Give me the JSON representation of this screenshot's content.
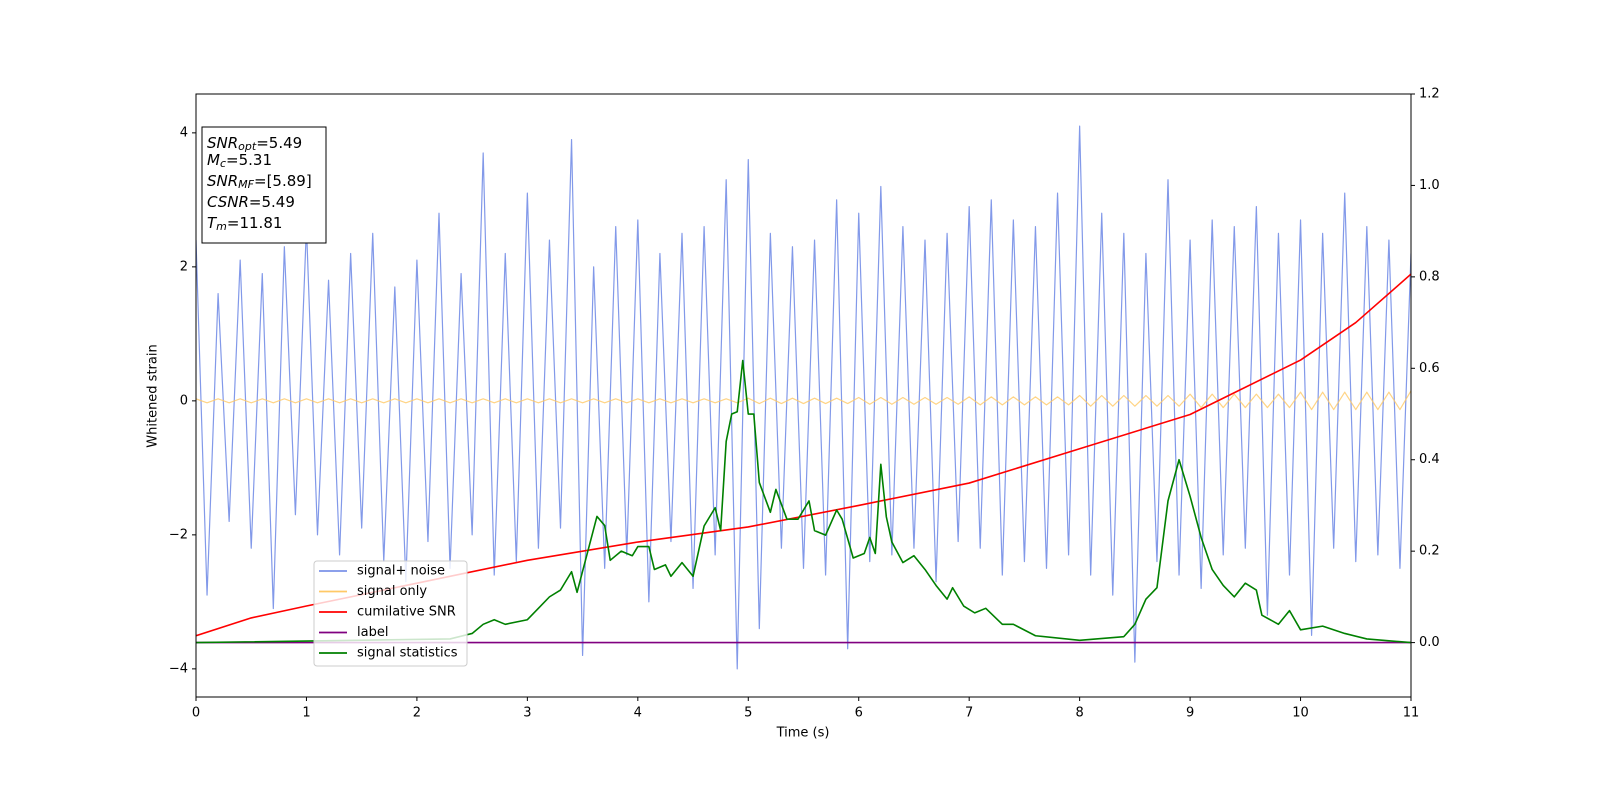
{
  "chart_data": {
    "type": "line",
    "xlabel": "Time (s)",
    "ylabel": "Whitened strain",
    "xlim": [
      0,
      11
    ],
    "xticks": [
      0,
      1,
      2,
      3,
      4,
      5,
      6,
      7,
      8,
      9,
      10,
      11
    ],
    "ylim": [
      -4.42,
      4.58
    ],
    "yticks": [
      {
        "value": -4,
        "label": "−4"
      },
      {
        "value": -2,
        "label": "−2"
      },
      0,
      2,
      4
    ],
    "y2lim": [
      -0.119,
      1.2
    ],
    "y2ticks": [
      {
        "value": 0,
        "label": "0.0"
      },
      {
        "value": 0.2,
        "label": "0.2"
      },
      {
        "value": 0.4,
        "label": "0.4"
      },
      {
        "value": 0.6,
        "label": "0.6"
      },
      {
        "value": 0.8,
        "label": "0.8"
      },
      {
        "value": 1.0,
        "label": "1.0"
      },
      {
        "value": 1.2,
        "label": "1.2"
      }
    ],
    "annotations": [
      {
        "main": "SNR",
        "sub": "opt",
        "rest": "=5.49"
      },
      {
        "main": "M",
        "sub": "c",
        "rest": "=5.31"
      },
      {
        "main": "SNR",
        "sub": "MF",
        "rest": "=[5.89]"
      },
      {
        "main": "CSNR",
        "rest": "=5.49"
      },
      {
        "main": "T",
        "sub": "m",
        "rest": "=11.81"
      }
    ],
    "series": [
      {
        "name": "signal+ noise",
        "color": "#7b93e8",
        "axis": "y",
        "x": [
          0,
          0.1,
          0.2,
          0.3,
          0.4,
          0.5,
          0.6,
          0.7,
          0.8,
          0.9,
          1,
          1.1,
          1.2,
          1.3,
          1.4,
          1.5,
          1.6,
          1.7,
          1.8,
          1.9,
          2,
          2.1,
          2.2,
          2.3,
          2.4,
          2.5,
          2.6,
          2.7,
          2.8,
          2.9,
          3,
          3.1,
          3.2,
          3.3,
          3.4,
          3.5,
          3.6,
          3.7,
          3.8,
          3.9,
          4,
          4.1,
          4.2,
          4.3,
          4.4,
          4.5,
          4.6,
          4.7,
          4.8,
          4.9,
          5,
          5.1,
          5.2,
          5.3,
          5.4,
          5.5,
          5.6,
          5.7,
          5.8,
          5.9,
          6,
          6.1,
          6.2,
          6.3,
          6.4,
          6.5,
          6.6,
          6.7,
          6.8,
          6.9,
          7,
          7.1,
          7.2,
          7.3,
          7.4,
          7.5,
          7.6,
          7.7,
          7.8,
          7.9,
          8,
          8.1,
          8.2,
          8.3,
          8.4,
          8.5,
          8.6,
          8.7,
          8.8,
          8.9,
          9,
          9.1,
          9.2,
          9.3,
          9.4,
          9.5,
          9.6,
          9.7,
          9.8,
          9.9,
          10,
          10.1,
          10.2,
          10.3,
          10.4,
          10.5,
          10.6,
          10.7,
          10.8,
          10.9,
          11
        ],
        "values": [
          2.4,
          -2.9,
          1.6,
          -1.8,
          2.1,
          -2.2,
          1.9,
          -3.1,
          2.3,
          -1.7,
          2.6,
          -2.0,
          1.8,
          -2.3,
          2.2,
          -1.9,
          2.5,
          -2.4,
          1.7,
          -2.7,
          2.1,
          -2.1,
          2.8,
          -2.5,
          1.9,
          -2.0,
          3.7,
          -2.6,
          2.2,
          -2.4,
          3.1,
          -2.2,
          2.4,
          -1.9,
          3.9,
          -3.8,
          2.0,
          -2.5,
          2.6,
          -2.3,
          2.7,
          -3.0,
          2.2,
          -2.1,
          2.5,
          -2.8,
          2.6,
          -2.3,
          3.3,
          -4.0,
          3.6,
          -3.4,
          2.5,
          -2.2,
          2.3,
          -2.5,
          2.4,
          -2.6,
          3.0,
          -3.7,
          2.8,
          -2.4,
          3.2,
          -2.3,
          2.6,
          -2.2,
          2.4,
          -2.7,
          2.5,
          -2.1,
          2.9,
          -2.2,
          3.0,
          -2.6,
          2.7,
          -2.4,
          2.6,
          -2.5,
          3.1,
          -2.3,
          4.1,
          -2.6,
          2.8,
          -2.9,
          2.5,
          -3.9,
          2.2,
          -2.4,
          3.3,
          -2.6,
          2.4,
          -2.8,
          2.7,
          -2.3,
          2.6,
          -2.2,
          2.9,
          -3.2,
          2.5,
          -2.6,
          2.7,
          -3.5,
          2.5,
          -2.2,
          3.1,
          -2.4,
          2.6,
          -2.3,
          2.4,
          -2.5,
          2.2
        ]
      },
      {
        "name": "signal only",
        "color": "#ffc966",
        "axis": "y",
        "x": [
          0,
          0.1,
          0.2,
          0.3,
          0.4,
          0.5,
          0.6,
          0.7,
          0.8,
          0.9,
          1,
          1.1,
          1.2,
          1.3,
          1.4,
          1.5,
          1.6,
          1.7,
          1.8,
          1.9,
          2,
          2.1,
          2.2,
          2.3,
          2.4,
          2.5,
          2.6,
          2.7,
          2.8,
          2.9,
          3,
          3.1,
          3.2,
          3.3,
          3.4,
          3.5,
          3.6,
          3.7,
          3.8,
          3.9,
          4,
          4.1,
          4.2,
          4.3,
          4.4,
          4.5,
          4.6,
          4.7,
          4.8,
          4.9,
          5,
          5.1,
          5.2,
          5.3,
          5.4,
          5.5,
          5.6,
          5.7,
          5.8,
          5.9,
          6,
          6.1,
          6.2,
          6.3,
          6.4,
          6.5,
          6.6,
          6.7,
          6.8,
          6.9,
          7,
          7.1,
          7.2,
          7.3,
          7.4,
          7.5,
          7.6,
          7.7,
          7.8,
          7.9,
          8,
          8.1,
          8.2,
          8.3,
          8.4,
          8.5,
          8.6,
          8.7,
          8.8,
          8.9,
          9,
          9.1,
          9.2,
          9.3,
          9.4,
          9.5,
          9.6,
          9.7,
          9.8,
          9.9,
          10,
          10.1,
          10.2,
          10.3,
          10.4,
          10.5,
          10.6,
          10.7,
          10.8,
          10.9,
          11
        ],
        "values": [
          0.03,
          -0.03,
          0.03,
          -0.03,
          0.03,
          -0.03,
          0.03,
          -0.03,
          0.03,
          -0.03,
          0.03,
          -0.03,
          0.03,
          -0.03,
          0.03,
          -0.03,
          0.03,
          -0.03,
          0.03,
          -0.03,
          0.03,
          -0.03,
          0.03,
          -0.03,
          0.03,
          -0.03,
          0.03,
          -0.03,
          0.03,
          -0.03,
          0.03,
          -0.03,
          0.03,
          -0.03,
          0.03,
          -0.03,
          0.03,
          -0.03,
          0.03,
          -0.03,
          0.03,
          -0.03,
          0.03,
          -0.03,
          0.03,
          -0.03,
          0.03,
          -0.03,
          0.03,
          -0.03,
          0.04,
          -0.04,
          0.04,
          -0.04,
          0.04,
          -0.04,
          0.04,
          -0.04,
          0.04,
          -0.04,
          0.05,
          -0.05,
          0.05,
          -0.05,
          0.05,
          -0.05,
          0.05,
          -0.05,
          0.05,
          -0.05,
          0.06,
          -0.06,
          0.06,
          -0.06,
          0.06,
          -0.06,
          0.06,
          -0.06,
          0.06,
          -0.06,
          0.08,
          -0.08,
          0.08,
          -0.08,
          0.08,
          -0.08,
          0.08,
          -0.08,
          0.08,
          -0.08,
          0.1,
          -0.1,
          0.1,
          -0.1,
          0.1,
          -0.1,
          0.1,
          -0.1,
          0.1,
          -0.1,
          0.13,
          -0.13,
          0.13,
          -0.13,
          0.13,
          -0.13,
          0.13,
          -0.13,
          0.13,
          -0.13,
          0.15
        ]
      },
      {
        "name": "cumilative SNR",
        "color": "#ff0000",
        "axis": "y2",
        "x": [
          0,
          0.5,
          1,
          2,
          3,
          4,
          5,
          6,
          7,
          8,
          9,
          10,
          10.5,
          11
        ],
        "values": [
          0.015,
          0.054,
          0.08,
          0.13,
          0.18,
          0.22,
          0.253,
          0.3,
          0.349,
          0.424,
          0.499,
          0.618,
          0.7,
          0.806
        ]
      },
      {
        "name": "label",
        "color": "#800080",
        "axis": "y2",
        "x": [
          0,
          11
        ],
        "values": [
          0,
          0
        ]
      },
      {
        "name": "signal statistics",
        "color": "#008000",
        "axis": "y2",
        "x": [
          0,
          2.3,
          2.5,
          2.6,
          2.7,
          2.8,
          3.0,
          3.1,
          3.2,
          3.3,
          3.4,
          3.45,
          3.63,
          3.7,
          3.75,
          3.85,
          3.95,
          4.0,
          4.1,
          4.15,
          4.25,
          4.3,
          4.4,
          4.5,
          4.6,
          4.7,
          4.75,
          4.8,
          4.85,
          4.9,
          4.95,
          5.0,
          5.05,
          5.1,
          5.2,
          5.25,
          5.35,
          5.45,
          5.55,
          5.6,
          5.7,
          5.8,
          5.85,
          5.95,
          6.05,
          6.1,
          6.15,
          6.2,
          6.25,
          6.3,
          6.4,
          6.5,
          6.6,
          6.7,
          6.8,
          6.85,
          6.95,
          7.05,
          7.15,
          7.3,
          7.4,
          7.6,
          8.0,
          8.4,
          8.5,
          8.6,
          8.7,
          8.8,
          8.9,
          9.0,
          9.1,
          9.2,
          9.3,
          9.4,
          9.5,
          9.6,
          9.65,
          9.8,
          9.9,
          10.0,
          10.2,
          10.4,
          10.6,
          11
        ],
        "values": [
          0,
          0.008,
          0.02,
          0.04,
          0.05,
          0.04,
          0.05,
          0.075,
          0.1,
          0.115,
          0.155,
          0.11,
          0.276,
          0.256,
          0.18,
          0.2,
          0.19,
          0.21,
          0.21,
          0.16,
          0.17,
          0.145,
          0.175,
          0.145,
          0.255,
          0.295,
          0.245,
          0.44,
          0.5,
          0.505,
          0.617,
          0.5,
          0.5,
          0.35,
          0.285,
          0.335,
          0.27,
          0.27,
          0.31,
          0.245,
          0.235,
          0.29,
          0.27,
          0.185,
          0.195,
          0.23,
          0.195,
          0.39,
          0.275,
          0.22,
          0.175,
          0.19,
          0.16,
          0.125,
          0.095,
          0.12,
          0.08,
          0.065,
          0.075,
          0.04,
          0.04,
          0.015,
          0.005,
          0.013,
          0.04,
          0.095,
          0.12,
          0.31,
          0.4,
          0.32,
          0.23,
          0.16,
          0.125,
          0.1,
          0.13,
          0.115,
          0.06,
          0.04,
          0.07,
          0.028,
          0.036,
          0.02,
          0.008,
          0
        ]
      }
    ]
  }
}
